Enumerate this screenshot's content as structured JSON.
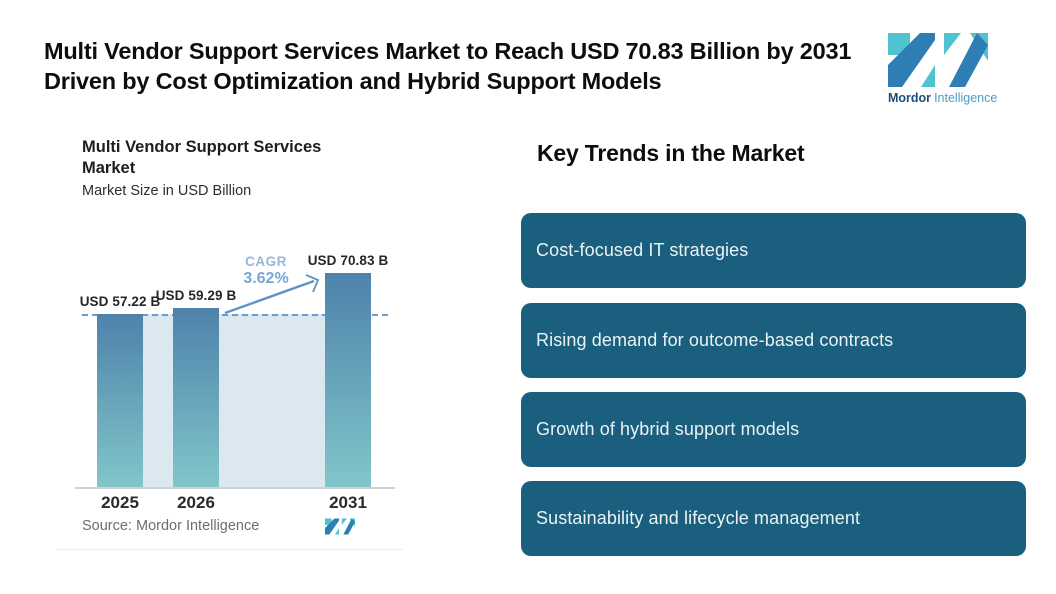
{
  "header": {
    "title": "Multi Vendor Support Services Market to Reach USD 70.83 Billion by 2031 Driven by Cost Optimization and Hybrid Support Models",
    "logo": {
      "brand_bold": "Mordor",
      "brand_light": "Intelligence"
    }
  },
  "chart": {
    "title": "Multi Vendor Support Services Market",
    "subtitle": "Market Size in USD Billion",
    "source": "Source: Mordor Intelligence",
    "cagr_label": "CAGR",
    "cagr_value": "3.62%"
  },
  "chart_data": {
    "type": "bar",
    "title": "Multi Vendor Support Services Market",
    "subtitle": "Market Size in USD Billion",
    "ylabel": "Market Size in USD Billion",
    "categories": [
      "2025",
      "2026",
      "2031"
    ],
    "values": [
      57.22,
      59.29,
      70.83
    ],
    "labels": [
      "USD 57.22 B",
      "USD 59.29 B",
      "USD 70.83 B"
    ],
    "annotations": [
      {
        "type": "growth-arrow",
        "text": "CAGR 3.62%",
        "from": "2026",
        "to": "2031"
      },
      {
        "type": "dashed-reference-line",
        "value": 57.22
      }
    ],
    "ylim": [
      0,
      75
    ],
    "grid": false,
    "legend": "none",
    "colors": {
      "bar_gradient_top": "#4e82ab",
      "bar_gradient_bottom": "#82c6ca",
      "band": "#dce8f0",
      "dashed_line": "#6b9cc9",
      "arrow": "#5e93c4"
    }
  },
  "trends": {
    "heading": "Key Trends in the Market",
    "box_color": "#1b5f7e",
    "items": [
      {
        "label": "Cost-focused IT strategies"
      },
      {
        "label": "Rising demand for outcome-based contracts"
      },
      {
        "label": "Growth of hybrid support models"
      },
      {
        "label": "Sustainability and lifecycle management"
      }
    ]
  }
}
